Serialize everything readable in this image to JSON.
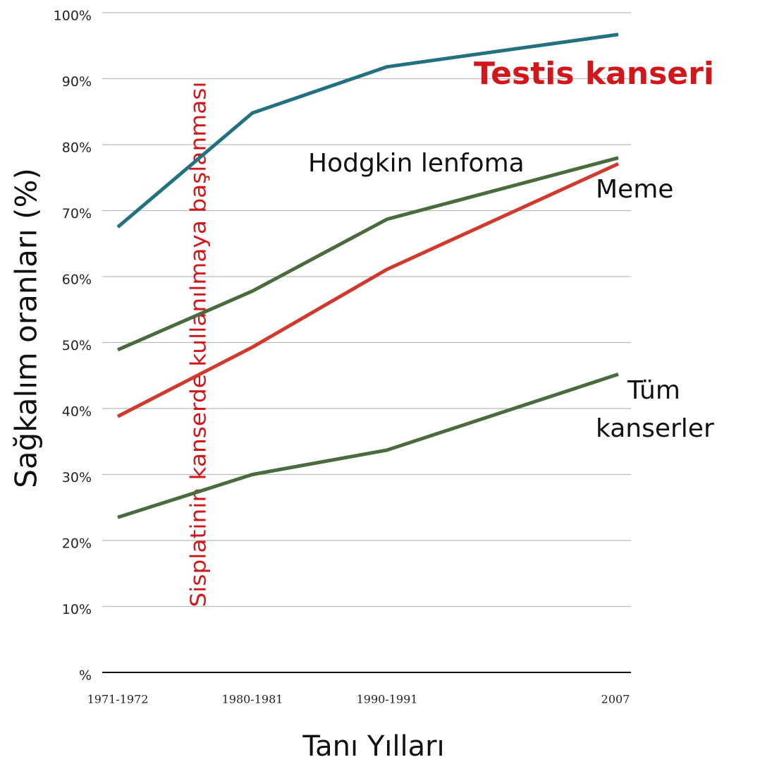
{
  "chart_data": {
    "type": "line",
    "x_label": "Tanı Yılları",
    "y_label": "Sağkalım oranları (%)",
    "annotation": "Sisplatinin kanserde kullanılmaya başlanması",
    "categories": [
      "1971-1972",
      "1980-1981",
      "1990-1991",
      "2007"
    ],
    "series": [
      {
        "name": "Testis kanseri",
        "color": "#23707f",
        "values": [
          67.5,
          84.8,
          91.8,
          96.7
        ]
      },
      {
        "name": "Hodgkin lenfoma",
        "color": "#4a6b3d",
        "values": [
          48.9,
          57.8,
          68.7,
          78
        ]
      },
      {
        "name": "Meme",
        "color": "#d03a2e",
        "values": [
          38.8,
          49.3,
          61.1,
          77.1
        ]
      },
      {
        "name": "Tüm kanserler",
        "color": "#4a6b3d",
        "values": [
          23.5,
          30,
          33.7,
          45.2
        ]
      }
    ],
    "ylim": [
      0,
      100
    ],
    "yticks": [
      {
        "value": 0,
        "label": "%"
      },
      {
        "value": 10,
        "label": "10%"
      },
      {
        "value": 20,
        "label": "20%"
      },
      {
        "value": 30,
        "label": "30%"
      },
      {
        "value": 40,
        "label": "40%"
      },
      {
        "value": 50,
        "label": "50%"
      },
      {
        "value": 60,
        "label": "60%"
      },
      {
        "value": 70,
        "label": "70%"
      },
      {
        "value": 80,
        "label": "80%"
      },
      {
        "value": 90,
        "label": "90%"
      },
      {
        "value": 100,
        "label": "100%"
      }
    ],
    "grid": true
  }
}
